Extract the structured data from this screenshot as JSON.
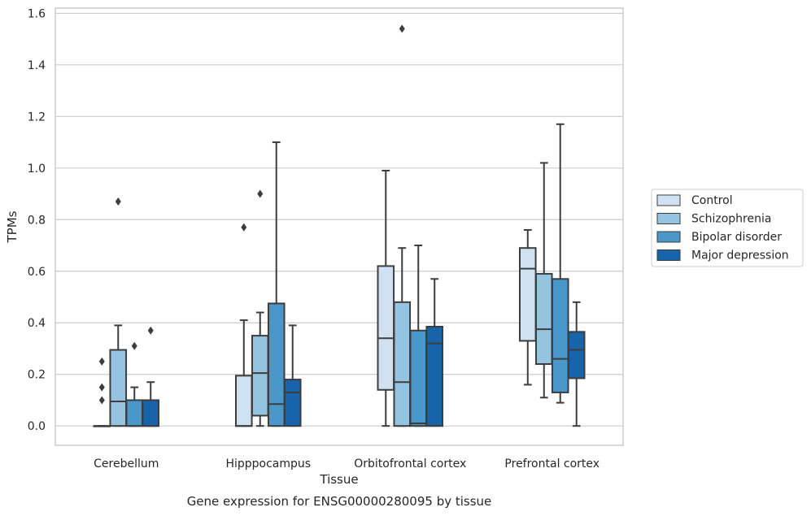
{
  "chart_data": {
    "type": "box",
    "xlabel": "Tissue",
    "ylabel": "TPMs",
    "caption": "Gene expression for ENSG00000280095 by tissue",
    "ylim": [
      -0.075,
      1.62
    ],
    "yticks": [
      "0.0",
      "0.2",
      "0.4",
      "0.6",
      "0.8",
      "1.0",
      "1.2",
      "1.4",
      "1.6"
    ],
    "grid": "horizontal",
    "legend_position": "right",
    "categories": [
      "Cerebellum",
      "Hipppocampus",
      "Orbitofrontal cortex",
      "Prefrontal cortex"
    ],
    "series": [
      {
        "name": "Control",
        "color": "#d0e1f2",
        "boxes": [
          {
            "low": 0.0,
            "q1": 0.0,
            "median": 0.0,
            "q3": 0.0,
            "high": 0.0,
            "outliers": [
              0.1,
              0.15,
              0.25
            ]
          },
          {
            "low": 0.0,
            "q1": 0.0,
            "median": 0.0,
            "q3": 0.195,
            "high": 0.41,
            "outliers": [
              0.77
            ]
          },
          {
            "low": 0.0,
            "q1": 0.14,
            "median": 0.34,
            "q3": 0.62,
            "high": 0.99,
            "outliers": []
          },
          {
            "low": 0.16,
            "q1": 0.33,
            "median": 0.61,
            "q3": 0.69,
            "high": 0.76,
            "outliers": []
          }
        ]
      },
      {
        "name": "Schizophrenia",
        "color": "#94c4df",
        "boxes": [
          {
            "low": 0.0,
            "q1": 0.0,
            "median": 0.095,
            "q3": 0.295,
            "high": 0.39,
            "outliers": [
              0.87
            ]
          },
          {
            "low": 0.0,
            "q1": 0.04,
            "median": 0.205,
            "q3": 0.35,
            "high": 0.44,
            "outliers": [
              0.9
            ]
          },
          {
            "low": 0.0,
            "q1": 0.0,
            "median": 0.17,
            "q3": 0.48,
            "high": 0.69,
            "outliers": [
              1.54
            ]
          },
          {
            "low": 0.11,
            "q1": 0.24,
            "median": 0.375,
            "q3": 0.59,
            "high": 1.02,
            "outliers": []
          }
        ]
      },
      {
        "name": "Bipolar disorder",
        "color": "#4a98c9",
        "boxes": [
          {
            "low": 0.0,
            "q1": 0.0,
            "median": 0.0,
            "q3": 0.1,
            "high": 0.15,
            "outliers": [
              0.31
            ]
          },
          {
            "low": 0.0,
            "q1": 0.0,
            "median": 0.085,
            "q3": 0.475,
            "high": 1.1,
            "outliers": []
          },
          {
            "low": 0.0,
            "q1": 0.0,
            "median": 0.01,
            "q3": 0.37,
            "high": 0.7,
            "outliers": []
          },
          {
            "low": 0.09,
            "q1": 0.13,
            "median": 0.26,
            "q3": 0.57,
            "high": 1.17,
            "outliers": []
          }
        ]
      },
      {
        "name": "Major depression",
        "color": "#1764ab",
        "boxes": [
          {
            "low": 0.0,
            "q1": 0.0,
            "median": 0.0,
            "q3": 0.1,
            "high": 0.17,
            "outliers": [
              0.37
            ]
          },
          {
            "low": 0.0,
            "q1": 0.0,
            "median": 0.13,
            "q3": 0.18,
            "high": 0.39,
            "outliers": []
          },
          {
            "low": 0.0,
            "q1": 0.0,
            "median": 0.32,
            "q3": 0.385,
            "high": 0.57,
            "outliers": []
          },
          {
            "low": 0.0,
            "q1": 0.185,
            "median": 0.295,
            "q3": 0.365,
            "high": 0.48,
            "outliers": []
          }
        ]
      }
    ]
  }
}
